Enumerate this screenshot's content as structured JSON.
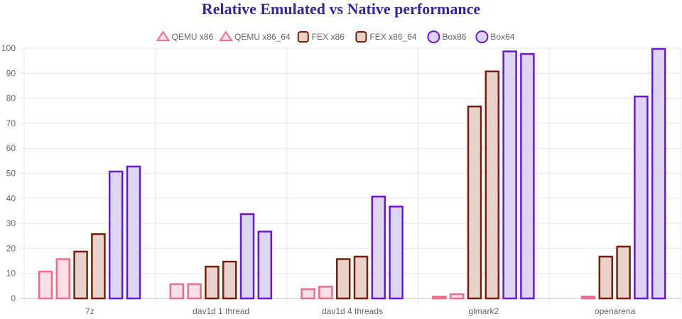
{
  "chart_data": {
    "type": "bar",
    "title": "Relative Emulated vs Native performance",
    "xlabel": "",
    "ylabel": "",
    "ylim": [
      0,
      100
    ],
    "yticks": [
      "0",
      "10",
      "20",
      "30",
      "40",
      "50",
      "60",
      "70",
      "80",
      "90",
      "100"
    ],
    "categories": [
      "7z",
      "dav1d 1 thread",
      "dav1d 4 threads",
      "glmark2",
      "openarena"
    ],
    "grid": true,
    "legend_position": "top",
    "series": [
      {
        "name": "QEMU x86",
        "values": [
          11,
          6,
          4,
          1,
          null
        ],
        "marker": "triangle",
        "stroke": "#f06b8a",
        "fill": "#fde0e6"
      },
      {
        "name": "QEMU x86_64",
        "values": [
          16,
          6,
          5,
          2,
          1
        ],
        "marker": "triangle",
        "stroke": "#f06b8a",
        "fill": "#fde0e6"
      },
      {
        "name": "FEX x86",
        "values": [
          19,
          13,
          16,
          77,
          17
        ],
        "marker": "rounded-square",
        "stroke": "#7a1e08",
        "fill": "#e8d2cc"
      },
      {
        "name": "FEX x86_64",
        "values": [
          26,
          15,
          17,
          91,
          21
        ],
        "marker": "rounded-square",
        "stroke": "#7a1e08",
        "fill": "#e8d2cc"
      },
      {
        "name": "Box86",
        "values": [
          51,
          34,
          41,
          99,
          81
        ],
        "marker": "circle",
        "stroke": "#6a16e0",
        "fill": "#ddd6f3"
      },
      {
        "name": "Box64",
        "values": [
          53,
          27,
          37,
          98,
          100
        ],
        "marker": "circle",
        "stroke": "#6a16e0",
        "fill": "#ddd6f3"
      }
    ]
  }
}
